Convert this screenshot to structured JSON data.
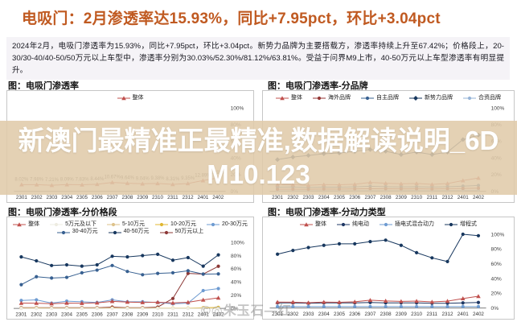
{
  "page": {
    "title": "电吸门：2月渗透率达15.93%，同比+7.95pct，环比+3.04pct",
    "summary": "2024年2月，电吸门渗透率为15.93%，同比+7.95pct，环比+3.04pct。新势力品牌为主要搭载方，渗透率持续上升至67.42%；价格段上，20-30/30-40/40-50/50万元以上车型中，渗透率分别为30.03%/52.30%/81.12%/63.81%。受益于问界M9上市，40-50万元以上车型渗透率有明显提升。",
    "watermark_line1": "新澳门最精准正最精准,数据解读说明_6D",
    "watermark_line2": "M10.123",
    "footer_watermark": "©◎朱玉石—红"
  },
  "colors": {
    "title_orange": "#c05a21",
    "watermark_band": "rgba(224,203,170,0.88)",
    "overall_red": "#c0504d",
    "dark_navy": "#17375e",
    "medium_blue": "#376091",
    "light_blue": "#95b3d7",
    "dark_red": "#8c3836"
  },
  "chart_data": [
    {
      "type": "line",
      "title": "图：电吸门渗透率",
      "categories": [
        "2301",
        "2302",
        "2303",
        "2304",
        "2305",
        "2306",
        "2307",
        "2308",
        "2309",
        "2310",
        "2311",
        "2312",
        "2401",
        "2402"
      ],
      "yticks": [
        "100%",
        "80%",
        "60%",
        "40%",
        "20%",
        "0%"
      ],
      "ylim": [
        0,
        100
      ],
      "grid": false,
      "legend_position": "top",
      "series": [
        {
          "name": "整体",
          "color": "#c0504d",
          "marker": "triangle",
          "show_labels": true,
          "values": [
            8.02,
            7.98,
            7.21,
            8.09,
            7.83,
            8.44,
            10.67,
            9.64,
            9.04,
            9.38,
            8.31,
            9.35,
            12.89,
            15.93
          ]
        }
      ]
    },
    {
      "type": "line",
      "title": "图：电吸门渗透率-分品牌",
      "categories": [
        "2301",
        "2302",
        "2303",
        "2304",
        "2305",
        "2306",
        "2307",
        "2308",
        "2309",
        "2310",
        "2311",
        "2312",
        "2401",
        "2402"
      ],
      "yticks": [
        "100%",
        "80%",
        "60%",
        "40%",
        "20%",
        "0%"
      ],
      "ylim": [
        0,
        100
      ],
      "grid": false,
      "legend_position": "top",
      "series": [
        {
          "name": "整体",
          "color": "#c0504d",
          "marker": "triangle",
          "show_labels": false,
          "values": [
            8.02,
            7.98,
            7.21,
            8.09,
            7.83,
            8.44,
            10.67,
            9.64,
            9.04,
            9.38,
            8.31,
            9.35,
            12.89,
            15.93
          ]
        },
        {
          "name": "海外品牌",
          "color": "#943634",
          "marker": "circle",
          "show_labels": false,
          "values": [
            2.5,
            2.6,
            2.4,
            2.8,
            2.7,
            2.9,
            3.2,
            3.0,
            2.9,
            3.0,
            2.8,
            3.1,
            3.4,
            3.8
          ]
        },
        {
          "name": "自主品牌",
          "color": "#376091",
          "marker": "circle",
          "show_labels": false,
          "values": [
            5.0,
            5.2,
            4.6,
            5.1,
            5.0,
            5.3,
            6.0,
            5.5,
            5.2,
            5.4,
            5.1,
            5.5,
            6.2,
            7.0
          ]
        },
        {
          "name": "新势力品牌",
          "color": "#17375e",
          "marker": "diamond",
          "show_labels": false,
          "values": [
            38,
            41,
            43,
            45,
            46,
            48,
            50,
            48,
            44,
            47,
            44,
            47,
            62,
            67.42
          ]
        },
        {
          "name": "合资品牌",
          "color": "#95b3d7",
          "marker": "circle",
          "show_labels": false,
          "values": [
            0.8,
            0.8,
            0.7,
            0.9,
            0.8,
            0.9,
            1.0,
            0.9,
            0.9,
            1.0,
            0.9,
            1.0,
            1.1,
            1.2
          ]
        }
      ]
    },
    {
      "type": "line",
      "title": "图：电吸门渗透率-分价格段",
      "categories": [
        "2301",
        "2302",
        "2303",
        "2304",
        "2305",
        "2306",
        "2307",
        "2308",
        "2309",
        "2310",
        "2311",
        "2312",
        "2401",
        "2402"
      ],
      "yticks": [
        "100%",
        "80%",
        "60%",
        "40%",
        "20%",
        "0%"
      ],
      "ylim": [
        0,
        100
      ],
      "grid": false,
      "legend_position": "top",
      "series": [
        {
          "name": "整体",
          "color": "#c0504d",
          "marker": "triangle",
          "show_labels": false,
          "values": [
            8.02,
            7.98,
            7.21,
            8.09,
            7.83,
            8.44,
            10.67,
            9.64,
            9.04,
            9.38,
            8.31,
            9.35,
            12.89,
            15.93
          ]
        },
        {
          "name": "5万元及以下",
          "color": "#eeece1",
          "marker": "circle",
          "show_labels": false,
          "values": [
            0,
            0,
            0,
            0,
            0,
            0,
            0,
            0,
            0,
            0,
            0,
            0,
            0,
            0
          ]
        },
        {
          "name": "5-10万元",
          "color": "#ddc28a",
          "marker": "circle",
          "show_labels": false,
          "values": [
            0.2,
            0.2,
            0.2,
            0.2,
            0.2,
            0.2,
            0.2,
            0.2,
            0.2,
            0.2,
            0.2,
            0.2,
            0.2,
            0.2
          ]
        },
        {
          "name": "10-20万元",
          "color": "#e0b732",
          "marker": "circle",
          "show_labels": false,
          "values": [
            0.5,
            0.6,
            0.4,
            0.5,
            0.5,
            0.4,
            0.6,
            0.5,
            0.5,
            0.5,
            0.4,
            0.5,
            1.0,
            1.5
          ]
        },
        {
          "name": "20-30万元",
          "color": "#6e9bd1",
          "marker": "circle",
          "show_labels": false,
          "values": [
            12,
            13,
            8,
            11,
            10,
            9,
            13,
            10,
            10,
            9,
            7,
            8,
            27,
            30.03
          ]
        },
        {
          "name": "30-40万元",
          "color": "#376091",
          "marker": "circle",
          "show_labels": false,
          "values": [
            36,
            48,
            46,
            47,
            54,
            58,
            65,
            56,
            51,
            53,
            54,
            57,
            52,
            52.3
          ]
        },
        {
          "name": "40-50万元",
          "color": "#17375e",
          "marker": "circle",
          "show_labels": false,
          "values": [
            78,
            72,
            65,
            66,
            64,
            66,
            79,
            78,
            80,
            82,
            73,
            77,
            64,
            81.12
          ]
        },
        {
          "name": "50万元以上",
          "color": "#8c3836",
          "marker": "circle",
          "show_labels": false,
          "values": [
            1,
            1,
            1,
            1,
            1,
            1,
            2,
            1,
            1,
            2,
            15,
            53,
            52,
            63.81
          ]
        }
      ]
    },
    {
      "type": "line",
      "title": "图：电吸门渗透率-分动力类型",
      "categories": [
        "2301",
        "2302",
        "2303",
        "2304",
        "2305",
        "2306",
        "2307",
        "2308",
        "2309",
        "2310",
        "2311",
        "2312",
        "2401",
        "2402"
      ],
      "yticks": [
        "100%",
        "80%",
        "60%",
        "40%",
        "20%",
        "0%"
      ],
      "ylim": [
        0,
        100
      ],
      "grid": false,
      "legend_position": "top",
      "series": [
        {
          "name": "整体",
          "color": "#c0504d",
          "marker": "triangle",
          "show_labels": false,
          "values": [
            8.02,
            7.98,
            7.21,
            8.09,
            7.83,
            8.44,
            10.67,
            9.64,
            9.04,
            9.38,
            8.31,
            9.35,
            12.89,
            15.93
          ]
        },
        {
          "name": "纯电动",
          "color": "#1f3864",
          "marker": "circle",
          "show_labels": false,
          "values": [
            7,
            7,
            6.5,
            7,
            7,
            7,
            7.5,
            7,
            7,
            7,
            6.5,
            6.5,
            7,
            7.5
          ]
        },
        {
          "name": "插电式混合动力",
          "color": "#6e9bd1",
          "marker": "circle",
          "show_labels": false,
          "values": [
            2,
            2,
            2,
            2,
            2,
            2,
            2,
            2,
            2,
            2,
            2,
            2,
            2,
            2
          ]
        },
        {
          "name": "增程式",
          "color": "#17375e",
          "marker": "circle",
          "show_labels": false,
          "values": [
            73,
            78,
            82,
            85,
            87,
            87,
            90,
            92,
            85,
            75,
            68,
            63,
            100,
            98
          ]
        }
      ]
    }
  ]
}
